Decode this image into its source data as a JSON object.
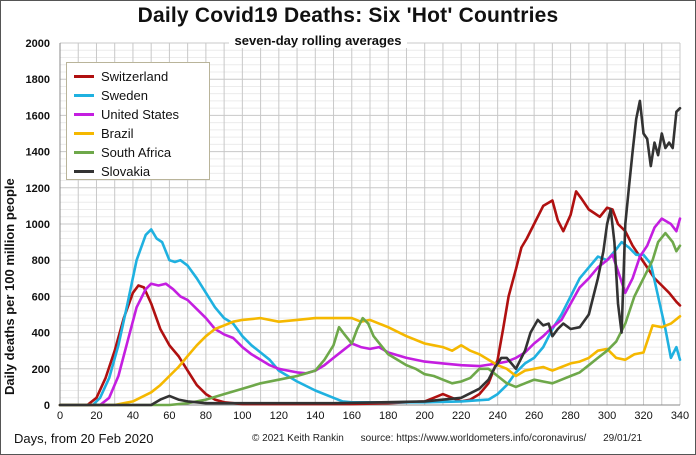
{
  "chart_data": {
    "type": "line",
    "title": "Daily Covid19 Deaths: Six 'Hot' Countries",
    "subtitle": "seven-day rolling averages",
    "xlabel": "Days, from 20 Feb 2020",
    "ylabel": "Daily deaths per 100 million people",
    "xlim": [
      0,
      340
    ],
    "ylim": [
      0,
      2000
    ],
    "xticks": [
      0,
      20,
      40,
      60,
      80,
      100,
      120,
      140,
      160,
      180,
      200,
      220,
      240,
      260,
      280,
      300,
      320,
      340
    ],
    "yticks": [
      0,
      200,
      400,
      600,
      800,
      1000,
      1200,
      1400,
      1600,
      1800,
      2000
    ],
    "grid": true,
    "legend_position": "top-left",
    "series": [
      {
        "name": "Switzerland",
        "color": "#b01010",
        "x": [
          0,
          15,
          20,
          25,
          30,
          35,
          40,
          43,
          46,
          50,
          55,
          60,
          65,
          70,
          75,
          80,
          85,
          90,
          100,
          120,
          140,
          160,
          180,
          200,
          205,
          210,
          215,
          220,
          225,
          230,
          235,
          240,
          243,
          246,
          250,
          253,
          256,
          260,
          265,
          270,
          273,
          276,
          280,
          283,
          286,
          290,
          293,
          296,
          300,
          303,
          306,
          310,
          314,
          318,
          322,
          326,
          330,
          334,
          338,
          340
        ],
        "y": [
          0,
          0,
          40,
          150,
          300,
          480,
          620,
          660,
          650,
          560,
          420,
          330,
          270,
          190,
          110,
          60,
          30,
          15,
          5,
          5,
          5,
          5,
          10,
          20,
          40,
          60,
          40,
          20,
          30,
          60,
          120,
          250,
          420,
          600,
          750,
          870,
          920,
          1000,
          1100,
          1130,
          1020,
          960,
          1050,
          1180,
          1140,
          1080,
          1060,
          1040,
          1090,
          1080,
          1000,
          960,
          880,
          820,
          760,
          700,
          660,
          620,
          570,
          550
        ]
      },
      {
        "name": "Sweden",
        "color": "#1fb1e0",
        "x": [
          0,
          18,
          22,
          27,
          32,
          37,
          42,
          47,
          50,
          53,
          56,
          60,
          63,
          66,
          70,
          75,
          80,
          85,
          90,
          95,
          100,
          105,
          110,
          115,
          120,
          130,
          140,
          150,
          155,
          160,
          170,
          180,
          200,
          220,
          235,
          240,
          245,
          250,
          255,
          260,
          265,
          270,
          275,
          280,
          285,
          290,
          295,
          300,
          305,
          308,
          312,
          316,
          320,
          324,
          328,
          332,
          335,
          338,
          340
        ],
        "y": [
          0,
          0,
          40,
          150,
          330,
          560,
          800,
          940,
          970,
          920,
          900,
          800,
          790,
          800,
          770,
          700,
          620,
          540,
          480,
          450,
          380,
          330,
          290,
          250,
          190,
          130,
          80,
          40,
          20,
          15,
          15,
          15,
          15,
          20,
          30,
          60,
          110,
          180,
          230,
          260,
          320,
          420,
          500,
          600,
          700,
          760,
          820,
          800,
          860,
          900,
          870,
          830,
          830,
          780,
          600,
          420,
          260,
          320,
          250
        ]
      },
      {
        "name": "United States",
        "color": "#c41ee0",
        "x": [
          0,
          22,
          27,
          32,
          37,
          42,
          47,
          50,
          54,
          58,
          62,
          66,
          70,
          75,
          80,
          85,
          90,
          95,
          100,
          105,
          110,
          115,
          120,
          125,
          130,
          135,
          140,
          145,
          150,
          155,
          160,
          165,
          170,
          175,
          180,
          190,
          200,
          210,
          220,
          230,
          240,
          245,
          250,
          255,
          260,
          265,
          270,
          275,
          280,
          285,
          290,
          295,
          300,
          303,
          306,
          310,
          314,
          318,
          322,
          326,
          330,
          335,
          338,
          340
        ],
        "y": [
          0,
          0,
          40,
          160,
          350,
          540,
          640,
          670,
          660,
          670,
          640,
          600,
          580,
          530,
          480,
          420,
          390,
          370,
          320,
          280,
          250,
          220,
          200,
          190,
          180,
          175,
          190,
          220,
          260,
          300,
          340,
          320,
          310,
          320,
          290,
          260,
          240,
          230,
          220,
          215,
          230,
          240,
          260,
          290,
          340,
          380,
          430,
          470,
          560,
          650,
          700,
          760,
          800,
          830,
          740,
          620,
          700,
          820,
          880,
          980,
          1030,
          1000,
          960,
          1030
        ]
      },
      {
        "name": "Brazil",
        "color": "#f5b800",
        "x": [
          0,
          30,
          40,
          50,
          55,
          60,
          65,
          70,
          75,
          80,
          85,
          90,
          95,
          100,
          110,
          120,
          130,
          140,
          150,
          160,
          165,
          170,
          180,
          190,
          200,
          205,
          210,
          215,
          220,
          225,
          230,
          235,
          240,
          245,
          250,
          255,
          260,
          265,
          270,
          275,
          280,
          285,
          290,
          295,
          300,
          305,
          310,
          315,
          320,
          325,
          330,
          335,
          340
        ],
        "y": [
          0,
          0,
          20,
          70,
          110,
          160,
          210,
          270,
          330,
          380,
          420,
          440,
          460,
          470,
          480,
          460,
          470,
          480,
          480,
          480,
          460,
          470,
          430,
          380,
          340,
          330,
          320,
          300,
          330,
          300,
          280,
          250,
          220,
          200,
          160,
          190,
          200,
          210,
          190,
          210,
          230,
          240,
          260,
          300,
          310,
          260,
          250,
          280,
          290,
          440,
          430,
          450,
          490
        ]
      },
      {
        "name": "South Africa",
        "color": "#6ea84a",
        "x": [
          0,
          60,
          70,
          80,
          90,
          100,
          110,
          120,
          130,
          140,
          145,
          150,
          153,
          156,
          160,
          163,
          166,
          169,
          172,
          176,
          180,
          185,
          190,
          195,
          200,
          205,
          210,
          215,
          220,
          225,
          230,
          235,
          240,
          245,
          250,
          255,
          260,
          265,
          270,
          275,
          280,
          285,
          290,
          295,
          300,
          305,
          310,
          315,
          320,
          325,
          328,
          332,
          336,
          338,
          340
        ],
        "y": [
          0,
          0,
          10,
          30,
          60,
          90,
          120,
          140,
          160,
          190,
          250,
          330,
          430,
          390,
          340,
          420,
          480,
          450,
          380,
          330,
          280,
          250,
          220,
          200,
          170,
          160,
          140,
          120,
          130,
          150,
          200,
          200,
          160,
          120,
          100,
          120,
          140,
          130,
          120,
          140,
          160,
          180,
          220,
          260,
          300,
          350,
          450,
          600,
          700,
          800,
          900,
          950,
          900,
          850,
          880
        ]
      },
      {
        "name": "Slovakia",
        "color": "#333333",
        "x": [
          0,
          50,
          55,
          60,
          65,
          70,
          80,
          100,
          150,
          200,
          220,
          230,
          235,
          238,
          242,
          245,
          250,
          255,
          258,
          262,
          265,
          268,
          270,
          273,
          276,
          280,
          285,
          290,
          295,
          298,
          300,
          302,
          304,
          306,
          308,
          310,
          312,
          314,
          316,
          318,
          320,
          322,
          324,
          326,
          328,
          330,
          332,
          334,
          336,
          338,
          340
        ],
        "y": [
          0,
          0,
          30,
          50,
          30,
          20,
          10,
          10,
          10,
          20,
          40,
          90,
          140,
          200,
          260,
          260,
          200,
          300,
          400,
          470,
          440,
          450,
          380,
          420,
          450,
          420,
          430,
          500,
          700,
          850,
          1000,
          1080,
          900,
          560,
          400,
          1000,
          1200,
          1400,
          1580,
          1680,
          1500,
          1470,
          1320,
          1450,
          1380,
          1500,
          1420,
          1450,
          1420,
          1620,
          1640
        ]
      }
    ]
  },
  "footer": {
    "copyright": "© 2021  Keith Rankin",
    "source": "source:  https://www.worldometers.info/coronavirus/",
    "date": "29/01/21"
  }
}
